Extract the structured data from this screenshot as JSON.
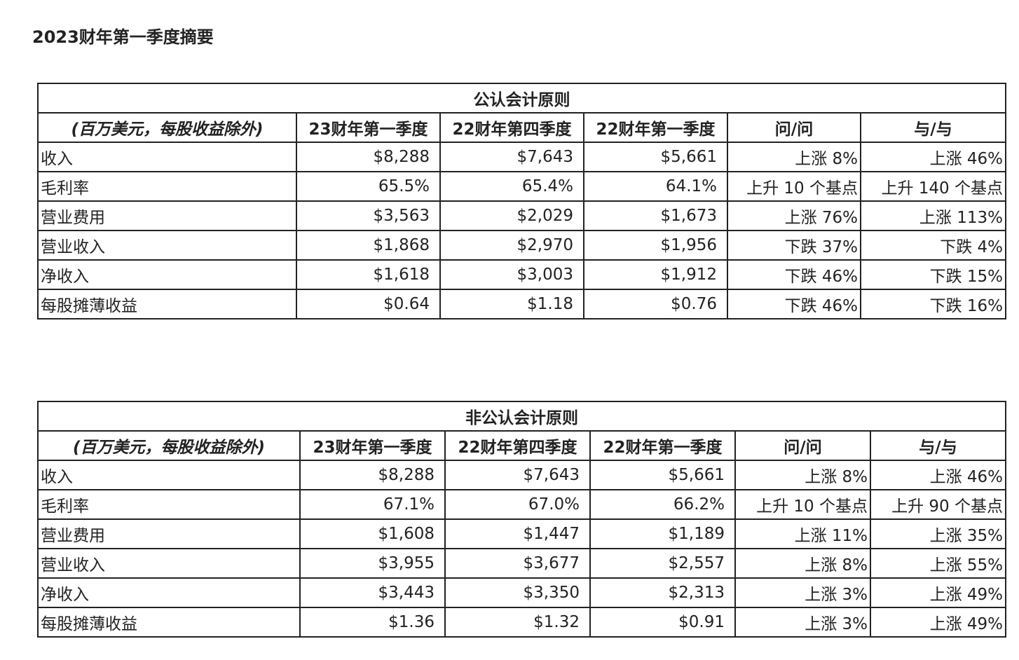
{
  "page_title": "2023财年第一季度摘要",
  "tables": [
    {
      "caption": "公认会计原则",
      "headers": [
        "(百万美元，每股收益除外)",
        "23财年第一季度",
        "22财年第四季度",
        "22财年第一季度",
        "问/问",
        "与/与"
      ],
      "rows": [
        {
          "label": "收入",
          "q1fy23": "$8,288",
          "q4fy22": "$7,643",
          "q1fy22": "$5,661",
          "qoq": "上涨 8%",
          "yoy": "上涨 46%"
        },
        {
          "label": "毛利率",
          "q1fy23": "65.5%",
          "q4fy22": "65.4%",
          "q1fy22": "64.1%",
          "qoq": "上升 10 个基点",
          "yoy": "上升 140 个基点"
        },
        {
          "label": "营业费用",
          "q1fy23": "$3,563",
          "q4fy22": "$2,029",
          "q1fy22": "$1,673",
          "qoq": "上涨 76%",
          "yoy": "上涨 113%"
        },
        {
          "label": "营业收入",
          "q1fy23": "$1,868",
          "q4fy22": "$2,970",
          "q1fy22": "$1,956",
          "qoq": "下跌 37%",
          "yoy": "下跌 4%"
        },
        {
          "label": "净收入",
          "q1fy23": "$1,618",
          "q4fy22": "$3,003",
          "q1fy22": "$1,912",
          "qoq": "下跌 46%",
          "yoy": "下跌 15%"
        },
        {
          "label": "每股摊薄收益",
          "q1fy23": "$0.64",
          "q4fy22": "$1.18",
          "q1fy22": "$0.76",
          "qoq": "下跌 46%",
          "yoy": "下跌 16%"
        }
      ]
    },
    {
      "caption": "非公认会计原则",
      "headers": [
        "(百万美元，每股收益除外)",
        "23财年第一季度",
        "22财年第四季度",
        "22财年第一季度",
        "问/问",
        "与/与"
      ],
      "rows": [
        {
          "label": "收入",
          "q1fy23": "$8,288",
          "q4fy22": "$7,643",
          "q1fy22": "$5,661",
          "qoq": "上涨 8%",
          "yoy": "上涨 46%"
        },
        {
          "label": "毛利率",
          "q1fy23": "67.1%",
          "q4fy22": "67.0%",
          "q1fy22": "66.2%",
          "qoq": "上升 10 个基点",
          "yoy": "上升 90 个基点"
        },
        {
          "label": "营业费用",
          "q1fy23": "$1,608",
          "q4fy22": "$1,447",
          "q1fy22": "$1,189",
          "qoq": "上涨 11%",
          "yoy": "上涨 35%"
        },
        {
          "label": "营业收入",
          "q1fy23": "$3,955",
          "q4fy22": "$3,677",
          "q1fy22": "$2,557",
          "qoq": "上涨 8%",
          "yoy": "上涨 55%"
        },
        {
          "label": "净收入",
          "q1fy23": "$3,443",
          "q4fy22": "$3,350",
          "q1fy22": "$2,313",
          "qoq": "上涨 3%",
          "yoy": "上涨 49%"
        },
        {
          "label": "每股摊薄收益",
          "q1fy23": "$1.36",
          "q4fy22": "$1.32",
          "q1fy22": "$0.91",
          "qoq": "上涨 3%",
          "yoy": "上涨 49%"
        }
      ]
    }
  ]
}
